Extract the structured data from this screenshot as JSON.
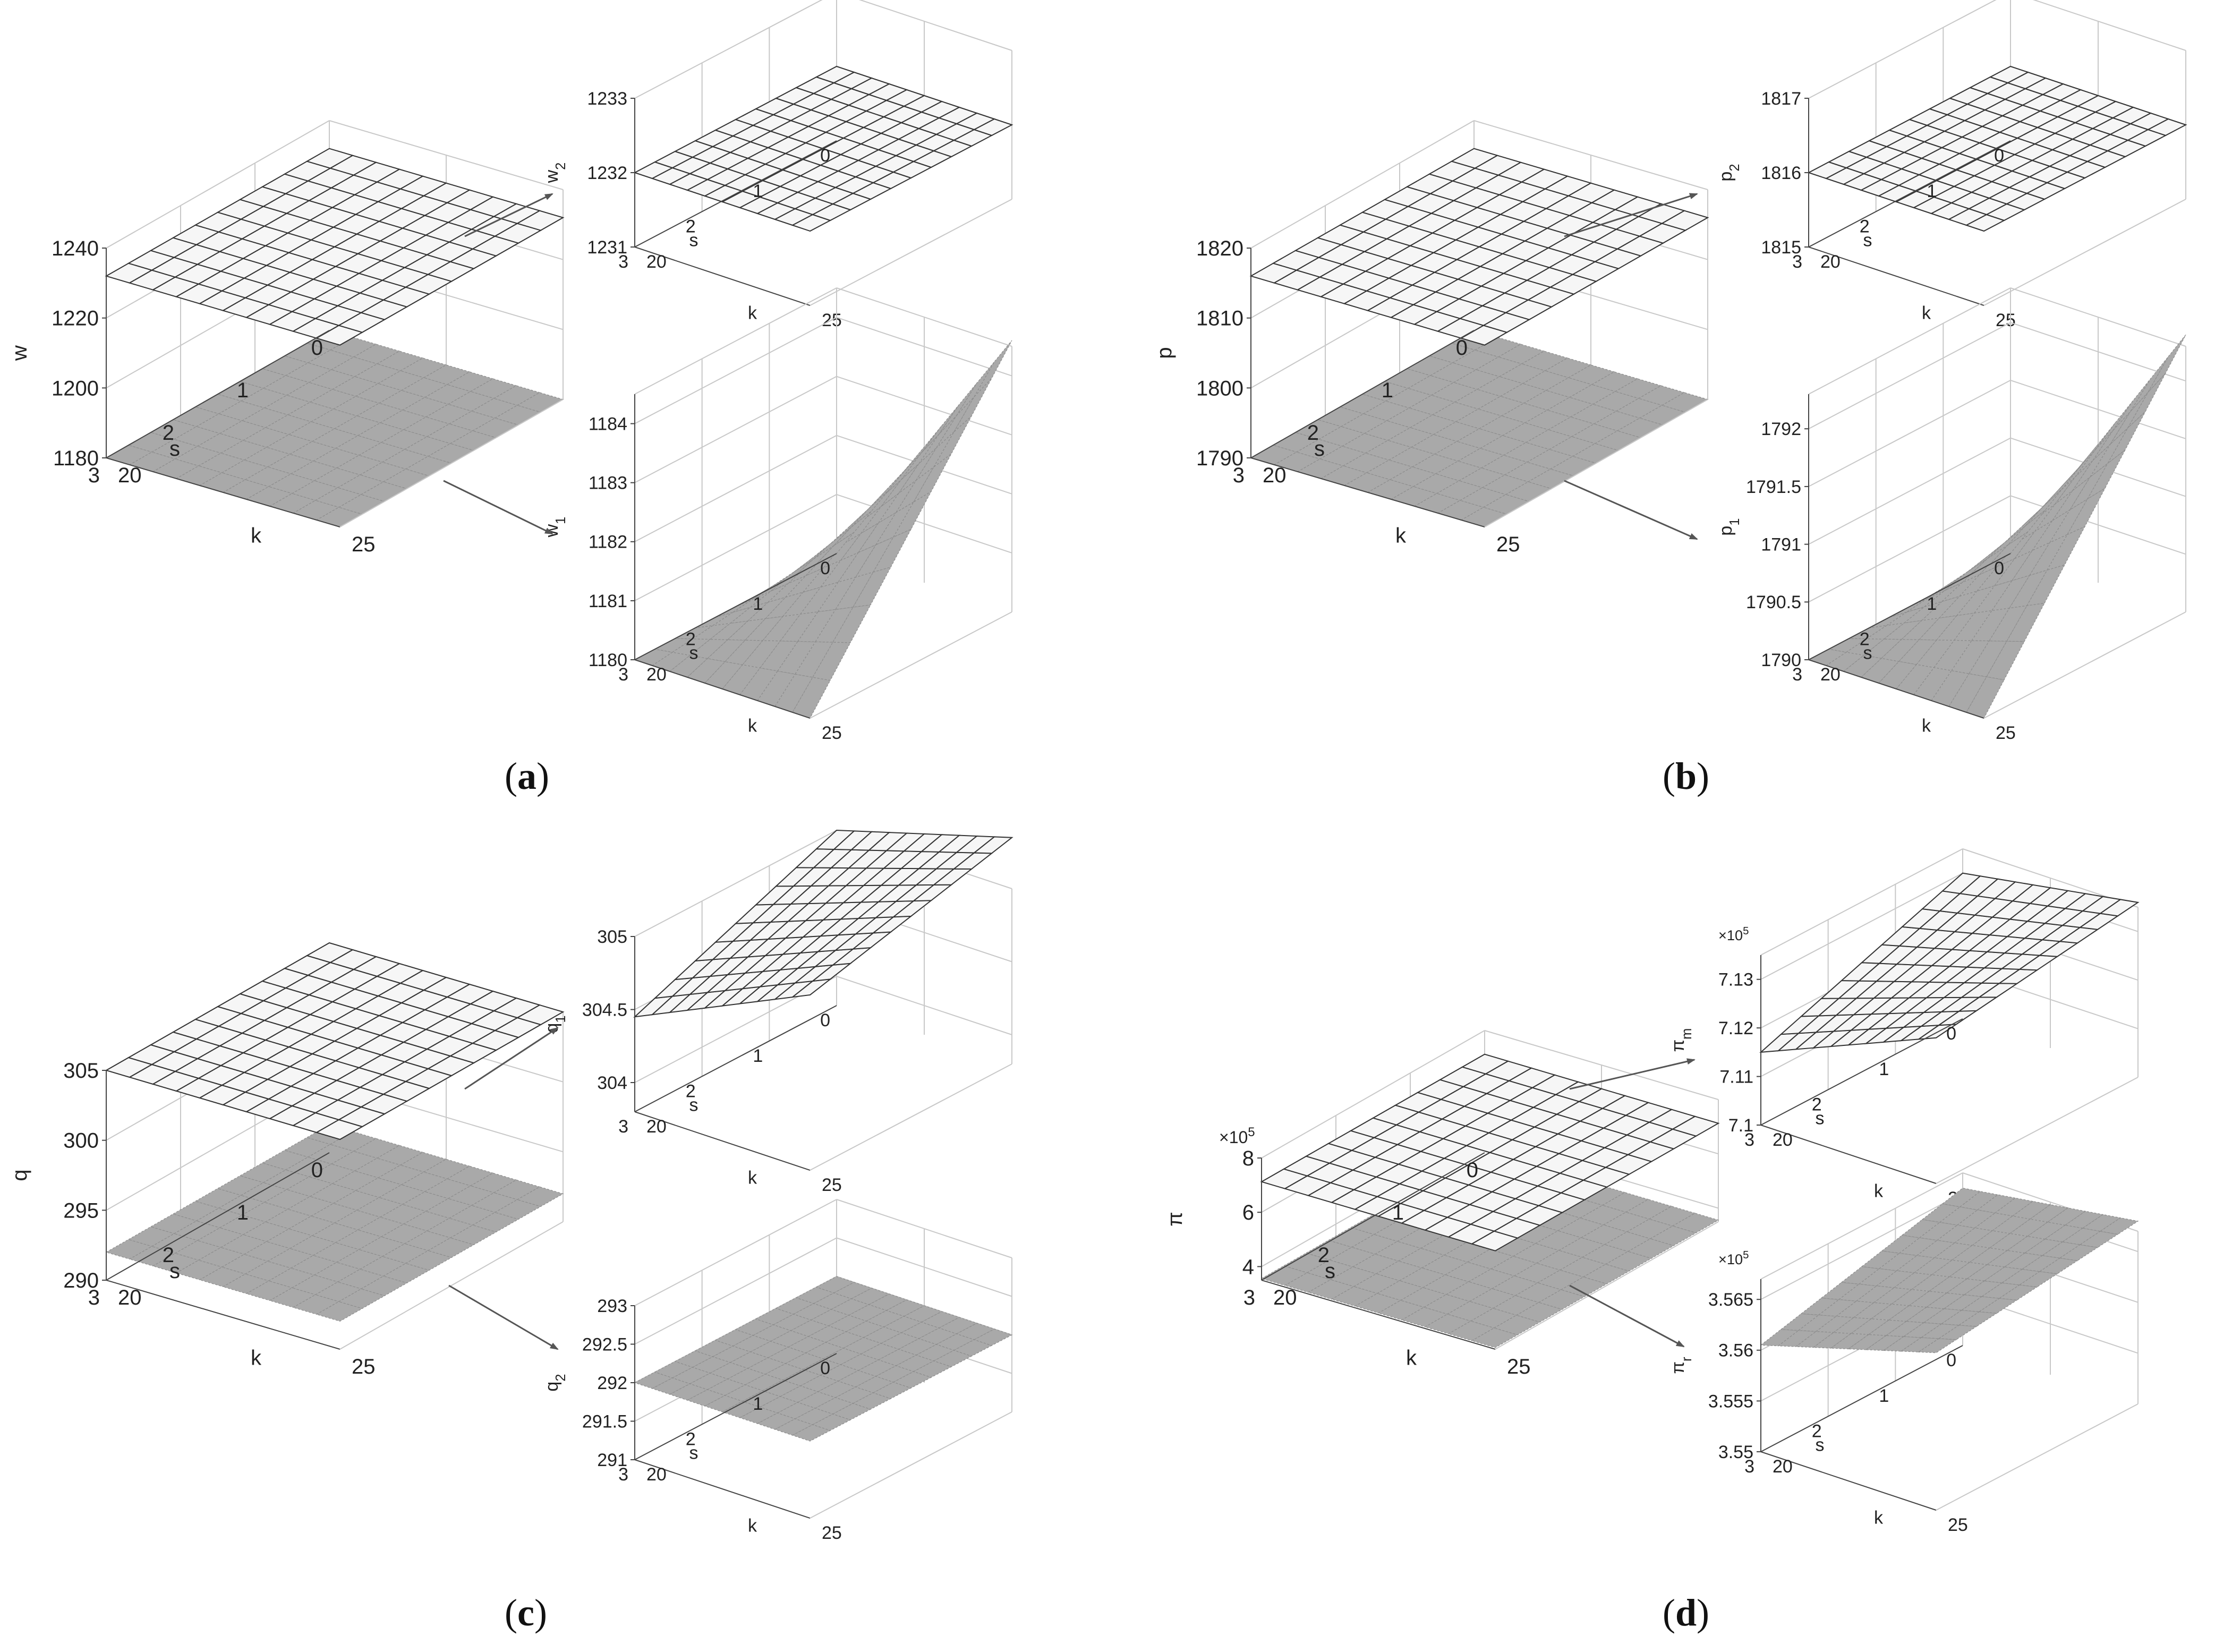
{
  "figure": {
    "captions": [
      {
        "open": "(",
        "letter": "a",
        "close": ")"
      },
      {
        "open": "(",
        "letter": "b",
        "close": ")"
      },
      {
        "open": "(",
        "letter": "c",
        "close": ")"
      },
      {
        "open": "(",
        "letter": "d",
        "close": ")"
      }
    ]
  },
  "chart_data": [
    {
      "type": "surface",
      "id": "a-main",
      "xlabel": "s",
      "ylabel": "k",
      "zlabel": "w",
      "xlim": [
        0,
        3
      ],
      "ylim": [
        20,
        25
      ],
      "zlim": [
        1180,
        1240
      ],
      "xticks": [
        "3",
        "2",
        "1",
        "0"
      ],
      "yticks": [
        "20",
        "25"
      ],
      "zticks": [
        "1180",
        "1200",
        "1220",
        "1240"
      ],
      "surfaces": [
        {
          "name": "w2",
          "style": "mesh",
          "corners": [
            1232,
            1232,
            1232,
            1232
          ]
        },
        {
          "name": "w1",
          "style": "shaded",
          "corners": [
            1180,
            1180,
            1180,
            1180
          ]
        }
      ]
    },
    {
      "type": "surface",
      "id": "a-top",
      "xlabel": "s",
      "ylabel": "k",
      "zlabel": "w",
      "zsub": "2",
      "xlim": [
        0,
        3
      ],
      "ylim": [
        20,
        25
      ],
      "zlim": [
        1231,
        1233
      ],
      "xticks": [
        "3",
        "2",
        "1",
        "0"
      ],
      "yticks": [
        "20",
        "25"
      ],
      "zticks": [
        "1231",
        "1232",
        "1233"
      ],
      "surfaces": [
        {
          "name": "w2",
          "style": "mesh",
          "corners": [
            1232,
            1232,
            1232,
            1232
          ]
        }
      ]
    },
    {
      "type": "surface",
      "id": "a-bot",
      "xlabel": "s",
      "ylabel": "k",
      "zlabel": "w",
      "zsub": "1",
      "xlim": [
        0,
        3
      ],
      "ylim": [
        20,
        25
      ],
      "zlim": [
        1180,
        1184.5
      ],
      "xticks": [
        "3",
        "2",
        "1",
        "0"
      ],
      "yticks": [
        "20",
        "25"
      ],
      "zticks": [
        "1180",
        "1181",
        "1182",
        "1183",
        "1184"
      ],
      "surfaces": [
        {
          "name": "w1",
          "style": "shaded",
          "corners": [
            1180,
            1180,
            1180,
            1184.6
          ]
        }
      ]
    },
    {
      "type": "surface",
      "id": "b-main",
      "xlabel": "s",
      "ylabel": "k",
      "zlabel": "p",
      "xlim": [
        0,
        3
      ],
      "ylim": [
        20,
        25
      ],
      "zlim": [
        1790,
        1820
      ],
      "xticks": [
        "3",
        "2",
        "1",
        "0"
      ],
      "yticks": [
        "20",
        "25"
      ],
      "zticks": [
        "1790",
        "1800",
        "1810",
        "1820"
      ],
      "surfaces": [
        {
          "name": "p2",
          "style": "mesh",
          "corners": [
            1816,
            1816,
            1816,
            1816
          ]
        },
        {
          "name": "p1",
          "style": "shaded",
          "corners": [
            1790,
            1790,
            1790,
            1790
          ]
        }
      ]
    },
    {
      "type": "surface",
      "id": "b-top",
      "xlabel": "s",
      "ylabel": "k",
      "zlabel": "p",
      "zsub": "2",
      "xlim": [
        0,
        3
      ],
      "ylim": [
        20,
        25
      ],
      "zlim": [
        1815,
        1817
      ],
      "xticks": [
        "3",
        "2",
        "1",
        "0"
      ],
      "yticks": [
        "20",
        "25"
      ],
      "zticks": [
        "1815",
        "1816",
        "1817"
      ],
      "surfaces": [
        {
          "name": "p2",
          "style": "mesh",
          "corners": [
            1816,
            1816,
            1816,
            1816
          ]
        }
      ]
    },
    {
      "type": "surface",
      "id": "b-bot",
      "xlabel": "s",
      "ylabel": "k",
      "zlabel": "p",
      "zsub": "1",
      "xlim": [
        0,
        3
      ],
      "ylim": [
        20,
        25
      ],
      "zlim": [
        1790,
        1792.3
      ],
      "xticks": [
        "3",
        "2",
        "1",
        "0"
      ],
      "yticks": [
        "20",
        "25"
      ],
      "zticks": [
        "1790",
        "1790.5",
        "1791",
        "1791.5",
        "1792"
      ],
      "surfaces": [
        {
          "name": "p1",
          "style": "shaded",
          "corners": [
            1790,
            1790,
            1790,
            1792.4
          ]
        }
      ]
    },
    {
      "type": "surface",
      "id": "c-main",
      "xlabel": "s",
      "ylabel": "k",
      "zlabel": "q",
      "xlim": [
        0,
        3
      ],
      "ylim": [
        20,
        25
      ],
      "zlim": [
        290,
        305
      ],
      "xticks": [
        "3",
        "2",
        "1",
        "0"
      ],
      "yticks": [
        "20",
        "25"
      ],
      "zticks": [
        "290",
        "295",
        "300",
        "305"
      ],
      "surfaces": [
        {
          "name": "q1",
          "style": "mesh",
          "corners": [
            305,
            305,
            305,
            305
          ]
        },
        {
          "name": "q2",
          "style": "shaded",
          "corners": [
            292,
            292,
            292,
            292
          ]
        }
      ]
    },
    {
      "type": "surface",
      "id": "c-top",
      "xlabel": "s",
      "ylabel": "k",
      "zlabel": "q",
      "zsub": "1",
      "xlim": [
        0,
        3
      ],
      "ylim": [
        20,
        25
      ],
      "zlim": [
        303.8,
        305
      ],
      "xticks": [
        "3",
        "2",
        "1",
        "0"
      ],
      "yticks": [
        "20",
        "25"
      ],
      "zticks": [
        "304",
        "304.5",
        "305"
      ],
      "surfaces": [
        {
          "name": "q1",
          "style": "mesh",
          "corners": [
            304.45,
            305,
            305,
            305.35
          ]
        }
      ]
    },
    {
      "type": "surface",
      "id": "c-bot",
      "xlabel": "s",
      "ylabel": "k",
      "zlabel": "q",
      "zsub": "2",
      "xlim": [
        0,
        3
      ],
      "ylim": [
        20,
        25
      ],
      "zlim": [
        291,
        293
      ],
      "xticks": [
        "3",
        "2",
        "1",
        "0"
      ],
      "yticks": [
        "20",
        "25"
      ],
      "zticks": [
        "291",
        "291.5",
        "292",
        "292.5",
        "293"
      ],
      "surfaces": [
        {
          "name": "q2",
          "style": "shaded",
          "corners": [
            292,
            292,
            292,
            292
          ]
        }
      ]
    },
    {
      "type": "surface",
      "id": "d-main",
      "xlabel": "s",
      "ylabel": "k",
      "zlabel": "π",
      "multiplier": "×10",
      "multiplier_exp": "5",
      "xlim": [
        0,
        3
      ],
      "ylim": [
        20,
        25
      ],
      "zlim": [
        3.5,
        8
      ],
      "xticks": [
        "3",
        "2",
        "1",
        "0"
      ],
      "yticks": [
        "20",
        "25"
      ],
      "zticks": [
        "4",
        "6",
        "8"
      ],
      "surfaces": [
        {
          "name": "πm",
          "style": "mesh",
          "corners": [
            7.125,
            7.125,
            7.125,
            7.125
          ]
        },
        {
          "name": "πr",
          "style": "shaded",
          "corners": [
            3.56,
            3.56,
            3.56,
            3.56
          ]
        }
      ]
    },
    {
      "type": "surface",
      "id": "d-top",
      "xlabel": "s",
      "ylabel": "k",
      "zlabel": "π",
      "zsub": "m",
      "multiplier": "×10",
      "multiplier_exp": "5",
      "xlim": [
        0,
        3
      ],
      "ylim": [
        20,
        25
      ],
      "zlim": [
        7.1,
        7.135
      ],
      "xticks": [
        "3",
        "2",
        "1",
        "0"
      ],
      "yticks": [
        "20",
        "25"
      ],
      "zticks": [
        "7.1",
        "7.11",
        "7.12",
        "7.13"
      ],
      "surfaces": [
        {
          "name": "πm",
          "style": "mesh",
          "corners": [
            7.115,
            7.13,
            7.13,
            7.136
          ]
        }
      ]
    },
    {
      "type": "surface",
      "id": "d-bot",
      "xlabel": "s",
      "ylabel": "k",
      "zlabel": "π",
      "zsub": "r",
      "multiplier": "×10",
      "multiplier_exp": "5",
      "xlim": [
        0,
        3
      ],
      "ylim": [
        20,
        25
      ],
      "zlim": [
        3.55,
        3.567
      ],
      "xticks": [
        "3",
        "2",
        "1",
        "0"
      ],
      "yticks": [
        "20",
        "25"
      ],
      "zticks": [
        "3.55",
        "3.555",
        "3.56",
        "3.565"
      ],
      "surfaces": [
        {
          "name": "πr",
          "style": "shaded",
          "corners": [
            3.5605,
            3.5655,
            3.5655,
            3.568
          ]
        }
      ]
    }
  ]
}
